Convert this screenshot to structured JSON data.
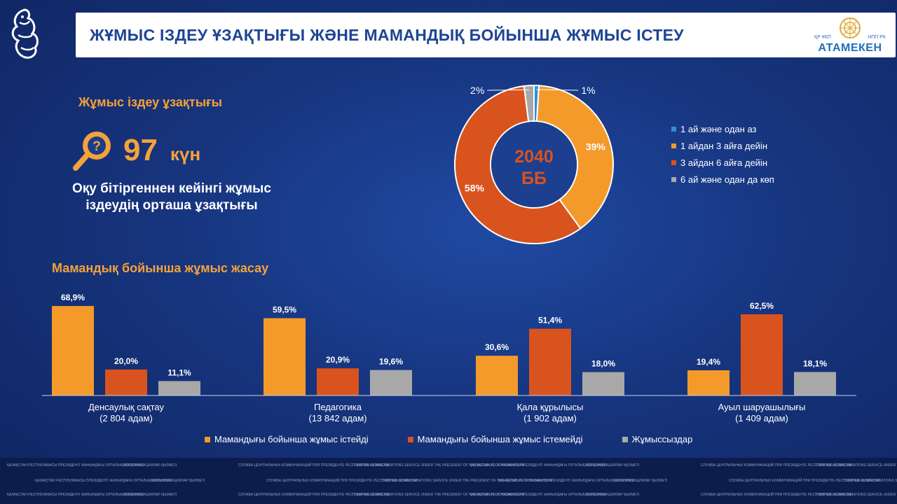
{
  "header": {
    "title": "ЖҰМЫС ІЗДЕУ ҰЗАҚТЫҒЫ ЖӘНЕ МАМАНДЫҚ БОЙЫНША ЖҰМЫС ІСТЕУ"
  },
  "brand": {
    "sub_left": "ҚР ҰКП",
    "sub_right": "НПП РК",
    "name": "АТАМЕКЕН"
  },
  "search_section": {
    "title": "Жұмыс іздеу ұзақтығы",
    "value": "97",
    "unit": "күн",
    "desc_line1": "Оқу бітіргеннен кейінгі жұмыс",
    "desc_line2": "іздеудің орташа ұзақтығы"
  },
  "chart_data": [
    {
      "type": "pie",
      "center_line1": "2040",
      "center_line2": "ББ",
      "labels": [
        "1 ай және одан аз",
        "1 айдан 3 айға дейін",
        "3 айдан 6 айға дейін",
        "6 ай және одан да көп"
      ],
      "values": [
        1,
        39,
        58,
        2
      ],
      "value_labels": [
        "1%",
        "39%",
        "58%",
        "2%"
      ],
      "colors": [
        "#2f8fd8",
        "#f39a2b",
        "#d9531e",
        "#a8a8a8"
      ],
      "legend_position": "right"
    },
    {
      "type": "bar",
      "title": "Мамандық бойынша жұмыс жасау",
      "categories": [
        "Денсаулық сақтау",
        "Педагогика",
        "Қала құрылысы",
        "Ауыл шаруашылығы"
      ],
      "category_subs": [
        "(2 804 адам)",
        "(13 842 адам)",
        "(1 902 адам)",
        "(1 409 адам)"
      ],
      "series": [
        {
          "name": "Мамандығы бойынша жұмыс істейді",
          "values": [
            68.9,
            59.5,
            30.6,
            19.4
          ],
          "labels": [
            "68,9%",
            "59,5%",
            "30,6%",
            "19,4%"
          ],
          "color": "#f39a2b"
        },
        {
          "name": "Мамандығы бойынша жұмыс істемейді",
          "values": [
            20.0,
            20.9,
            51.4,
            62.5
          ],
          "labels": [
            "20,0%",
            "20,9%",
            "51,4%",
            "62,5%"
          ],
          "color": "#d9531e"
        },
        {
          "name": "Жұмыссыздар",
          "values": [
            11.1,
            19.6,
            18.0,
            18.1
          ],
          "labels": [
            "11,1%",
            "19,6%",
            "18,0%",
            "18,1%"
          ],
          "color": "#a8a8a8"
        }
      ],
      "ylim": [
        0,
        100
      ],
      "grid": false,
      "legend_position": "bottom"
    }
  ],
  "footer": {
    "lines": [
      "ҚАЗАҚСТАН РЕСПУБЛИКАСЫ ПРЕЗИДЕНТІ ЖАНЫНДАҒЫ ОРТАЛЫҚ КОММУНИКАЦИЯЛАР ҚЫЗМЕТІ",
      "ORTCOM.KZ",
      "СЛУЖБА ЦЕНТРАЛЬНЫХ КОММУНИКАЦИЙ ПРИ ПРЕЗИДЕНТЕ РЕСПУБЛИКИ КАЗАХСТАН",
      "CENTRAL COMMUNICATIONS SERVICE UNDER THE PRESIDENT OF THE REPUBLIC OF KAZAKHSTAN"
    ]
  }
}
